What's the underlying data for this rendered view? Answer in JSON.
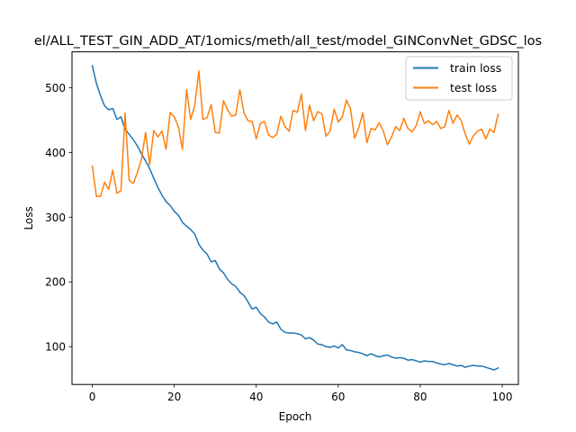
{
  "chart_data": {
    "type": "line",
    "title": "el/ALL_TEST_GIN_ADD_AT/1omics/meth/all_test/model_GINConvNet_GDSC_los",
    "xlabel": "Epoch",
    "ylabel": "Loss",
    "xlim": [
      -4.95,
      103.95
    ],
    "ylim": [
      41.5,
      555.5
    ],
    "xticks": [
      0,
      20,
      40,
      60,
      80,
      100
    ],
    "yticks": [
      100,
      200,
      300,
      400,
      500
    ],
    "grid": false,
    "legend_position": "top-right",
    "x": [
      0,
      1,
      2,
      3,
      4,
      5,
      6,
      7,
      8,
      9,
      10,
      11,
      12,
      13,
      14,
      15,
      16,
      17,
      18,
      19,
      20,
      21,
      22,
      23,
      24,
      25,
      26,
      27,
      28,
      29,
      30,
      31,
      32,
      33,
      34,
      35,
      36,
      37,
      38,
      39,
      40,
      41,
      42,
      43,
      44,
      45,
      46,
      47,
      48,
      49,
      50,
      51,
      52,
      53,
      54,
      55,
      56,
      57,
      58,
      59,
      60,
      61,
      62,
      63,
      64,
      65,
      66,
      67,
      68,
      69,
      70,
      71,
      72,
      73,
      74,
      75,
      76,
      77,
      78,
      79,
      80,
      81,
      82,
      83,
      84,
      85,
      86,
      87,
      88,
      89,
      90,
      91,
      92,
      93,
      94,
      95,
      96,
      97,
      98,
      99
    ],
    "series": [
      {
        "name": "train loss",
        "color": "#1f77b4",
        "values": [
          534,
          507,
          488,
          472,
          466,
          468,
          451,
          455,
          436,
          428,
          420,
          410,
          398,
          387,
          375,
          360,
          346,
          334,
          324,
          318,
          309,
          303,
          292,
          286,
          281,
          274,
          258,
          249,
          243,
          231,
          233,
          220,
          214,
          204,
          197,
          193,
          184,
          179,
          169,
          158,
          161,
          151,
          146,
          138,
          135,
          138,
          127,
          122,
          121,
          121,
          120,
          118,
          112,
          114,
          110,
          104,
          103,
          100,
          99,
          101,
          98,
          103,
          95,
          94,
          92,
          91,
          89,
          86,
          89,
          86,
          84,
          86,
          87,
          84,
          82,
          83,
          82,
          79,
          80,
          78,
          76,
          78,
          77,
          77,
          75,
          73,
          72,
          74,
          72,
          70,
          71,
          68,
          70,
          71,
          70,
          70,
          68,
          66,
          64,
          67
        ]
      },
      {
        "name": "test loss",
        "color": "#ff7f0e",
        "values": [
          379,
          332,
          332,
          354,
          343,
          373,
          337,
          341,
          461,
          357,
          352,
          369,
          390,
          431,
          381,
          434,
          424,
          433,
          405,
          462,
          455,
          440,
          405,
          497,
          451,
          473,
          526,
          451,
          454,
          474,
          431,
          430,
          480,
          466,
          456,
          458,
          497,
          461,
          449,
          448,
          421,
          445,
          448,
          427,
          423,
          428,
          456,
          440,
          433,
          465,
          462,
          490,
          434,
          473,
          449,
          463,
          460,
          425,
          433,
          467,
          447,
          455,
          481,
          467,
          422,
          438,
          461,
          415,
          437,
          435,
          446,
          433,
          412,
          424,
          440,
          434,
          453,
          437,
          432,
          441,
          463,
          445,
          449,
          443,
          448,
          437,
          440,
          465,
          445,
          458,
          449,
          428,
          413,
          426,
          433,
          436,
          421,
          436,
          431,
          459
        ]
      }
    ]
  }
}
